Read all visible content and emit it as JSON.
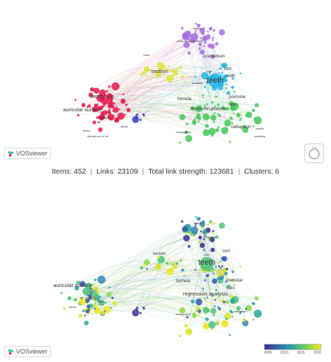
{
  "stats": {
    "items": "Items: 452",
    "links": "Links: 23109",
    "strength": "Total link strength: 123681",
    "clusters": "Clusters: 6",
    "sep": "|"
  },
  "brand": {
    "name": "VOSviewer"
  },
  "top_panel": {
    "labels": [
      {
        "text": "teeth",
        "cluster": "cyan",
        "size": "xl"
      },
      {
        "text": "sectioning",
        "cluster": "red",
        "size": "m"
      },
      {
        "text": "auricular surface",
        "cluster": "red",
        "size": "m"
      },
      {
        "text": "adult",
        "cluster": "red",
        "size": "s"
      },
      {
        "text": "section",
        "cluster": "yellow",
        "size": "m"
      },
      {
        "text": "premolar",
        "cluster": "green",
        "size": "s"
      },
      {
        "text": "ratio",
        "cluster": "green",
        "size": "s"
      },
      {
        "text": "regression analysis",
        "cluster": "green",
        "size": "s"
      },
      {
        "text": "radiograph",
        "cluster": "green",
        "size": "s"
      },
      {
        "text": "formula",
        "cluster": "green",
        "size": "s"
      },
      {
        "text": "cementum",
        "cluster": "purple",
        "size": "s"
      },
      {
        "text": "root",
        "cluster": "cyan",
        "size": "s"
      },
      {
        "text": "tooth",
        "cluster": "cyan",
        "size": "s"
      },
      {
        "text": "thickness",
        "cluster": "cyan",
        "size": "xs"
      },
      {
        "text": "pulp",
        "cluster": "cyan",
        "size": "xs"
      },
      {
        "text": "cross sectional study",
        "cluster": "purple",
        "size": "xs"
      },
      {
        "text": "design",
        "cluster": "purple",
        "size": "xs"
      },
      {
        "text": "tomography",
        "cluster": "green",
        "size": "xs"
      },
      {
        "text": "canine",
        "cluster": "green",
        "size": "xs"
      },
      {
        "text": "maxillary",
        "cluster": "green",
        "size": "xs"
      },
      {
        "text": "femur",
        "cluster": "red",
        "size": "xs"
      },
      {
        "text": "pelvis",
        "cluster": "red",
        "size": "xs"
      },
      {
        "text": "sternal end of rib",
        "cluster": "red",
        "size": "xs"
      },
      {
        "text": "bone",
        "cluster": "yellow",
        "size": "xs"
      }
    ]
  },
  "bottom_panel": {
    "labels": [
      {
        "text": "teeth",
        "size": "xl"
      },
      {
        "text": "auricular surface",
        "size": "m"
      },
      {
        "text": "pelvis",
        "size": "s"
      },
      {
        "text": "section",
        "size": "s"
      },
      {
        "text": "formula",
        "size": "s"
      },
      {
        "text": "regression analysis",
        "size": "m"
      },
      {
        "text": "premolar",
        "size": "s"
      },
      {
        "text": "ratio",
        "size": "s"
      },
      {
        "text": "root",
        "size": "s"
      },
      {
        "text": "cementum",
        "size": "xs"
      },
      {
        "text": "design",
        "size": "xs"
      },
      {
        "text": "radiograph",
        "size": "xs"
      },
      {
        "text": "tomography",
        "size": "xs"
      },
      {
        "text": "femur",
        "size": "xs"
      },
      {
        "text": "adult",
        "size": "xs"
      },
      {
        "text": "pulp",
        "size": "xs"
      }
    ],
    "scale_ticks": [
      "2005",
      "2010",
      "2015",
      "2020"
    ]
  },
  "colors": {
    "red": "#e8194a",
    "green": "#43c95a",
    "cyan": "#1fb6e6",
    "purple": "#a86ee0",
    "yellow": "#d9e534",
    "blue": "#3a3fbf"
  },
  "icons": [
    "vosviewer-logo-icon",
    "zoom-icon"
  ]
}
